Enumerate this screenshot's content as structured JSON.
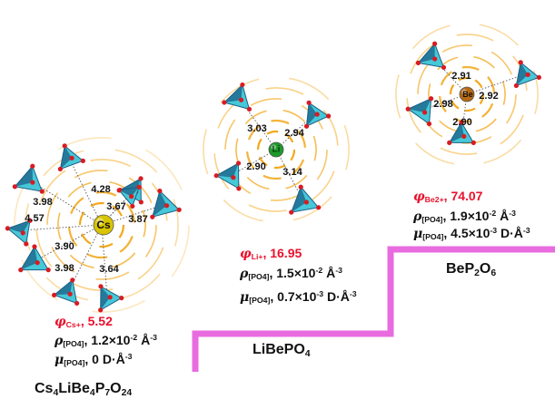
{
  "stages": [
    {
      "id": "cs",
      "formula_parts": [
        [
          "Cs",
          ""
        ],
        [
          "4",
          "s"
        ],
        [
          "LiBe",
          ""
        ],
        [
          "4",
          "s"
        ],
        [
          "P",
          ""
        ],
        [
          "7",
          "s"
        ],
        [
          "O",
          ""
        ],
        [
          "24",
          "s"
        ]
      ],
      "center_label": "Cs",
      "center_color": "#d8c400",
      "distances": [
        "4.28",
        "3.67",
        "3.98",
        "4.57",
        "3.87",
        "3.90",
        "3.98",
        "3.64"
      ],
      "phi_label": "φ",
      "phi_sub": "Cs+",
      "phi_value": "5.52",
      "rho_sym": "ρ",
      "rho_sub": "[PO4]",
      "rho_value": "1.2×10",
      "rho_exp": "-2",
      "rho_unit": "Å",
      "rho_unit_exp": "-3",
      "mu_sym": "μ",
      "mu_sub": "[PO4]",
      "mu_value": "0 D·Å",
      "mu_exp": "-3"
    },
    {
      "id": "li",
      "formula_parts": [
        [
          "LiBePO",
          ""
        ],
        [
          "4",
          "s"
        ]
      ],
      "center_label": "Li",
      "center_color": "#1e9a2a",
      "distances": [
        "3.03",
        "2.94",
        "2.90",
        "3.14"
      ],
      "phi_label": "φ",
      "phi_sub": "Li+",
      "phi_value": "16.95",
      "rho_sym": "ρ",
      "rho_sub": "[PO4]",
      "rho_value": "1.5×10",
      "rho_exp": "-2",
      "rho_unit": "Å",
      "rho_unit_exp": "-3",
      "mu_sym": "μ",
      "mu_sub": "[PO4]",
      "mu_value": "0.7×10",
      "mu_exp": "-3",
      "mu_unit": "D·Å",
      "mu_unit_exp": "-3"
    },
    {
      "id": "be",
      "formula_parts": [
        [
          "BeP",
          ""
        ],
        [
          "2",
          "s"
        ],
        [
          "O",
          ""
        ],
        [
          "6",
          "s"
        ]
      ],
      "center_label": "Be",
      "center_color": "#b86a10",
      "distances": [
        "2.91",
        "2.92",
        "2.98",
        "2.90"
      ],
      "phi_label": "φ",
      "phi_sub": "Be2+",
      "phi_value": "74.07",
      "rho_sym": "ρ",
      "rho_sub": "[PO4]",
      "rho_value": "1.9×10",
      "rho_exp": "-2",
      "rho_unit": "Å",
      "rho_unit_exp": "-3",
      "mu_sym": "μ",
      "mu_sub": "[PO4]",
      "mu_value": "4.5×10",
      "mu_exp": "-3",
      "mu_unit": "D·Å",
      "mu_unit_exp": "-3"
    }
  ],
  "colors": {
    "staircase": "#e86ce0",
    "staircase_fade": "#f6d2f2",
    "arcs": "#f3a81c",
    "tetrahedron_light": "#45c8d8",
    "tetrahedron_dark": "#1b5f86",
    "oxygen": "#d81b22",
    "phi_red": "#e8112d"
  }
}
